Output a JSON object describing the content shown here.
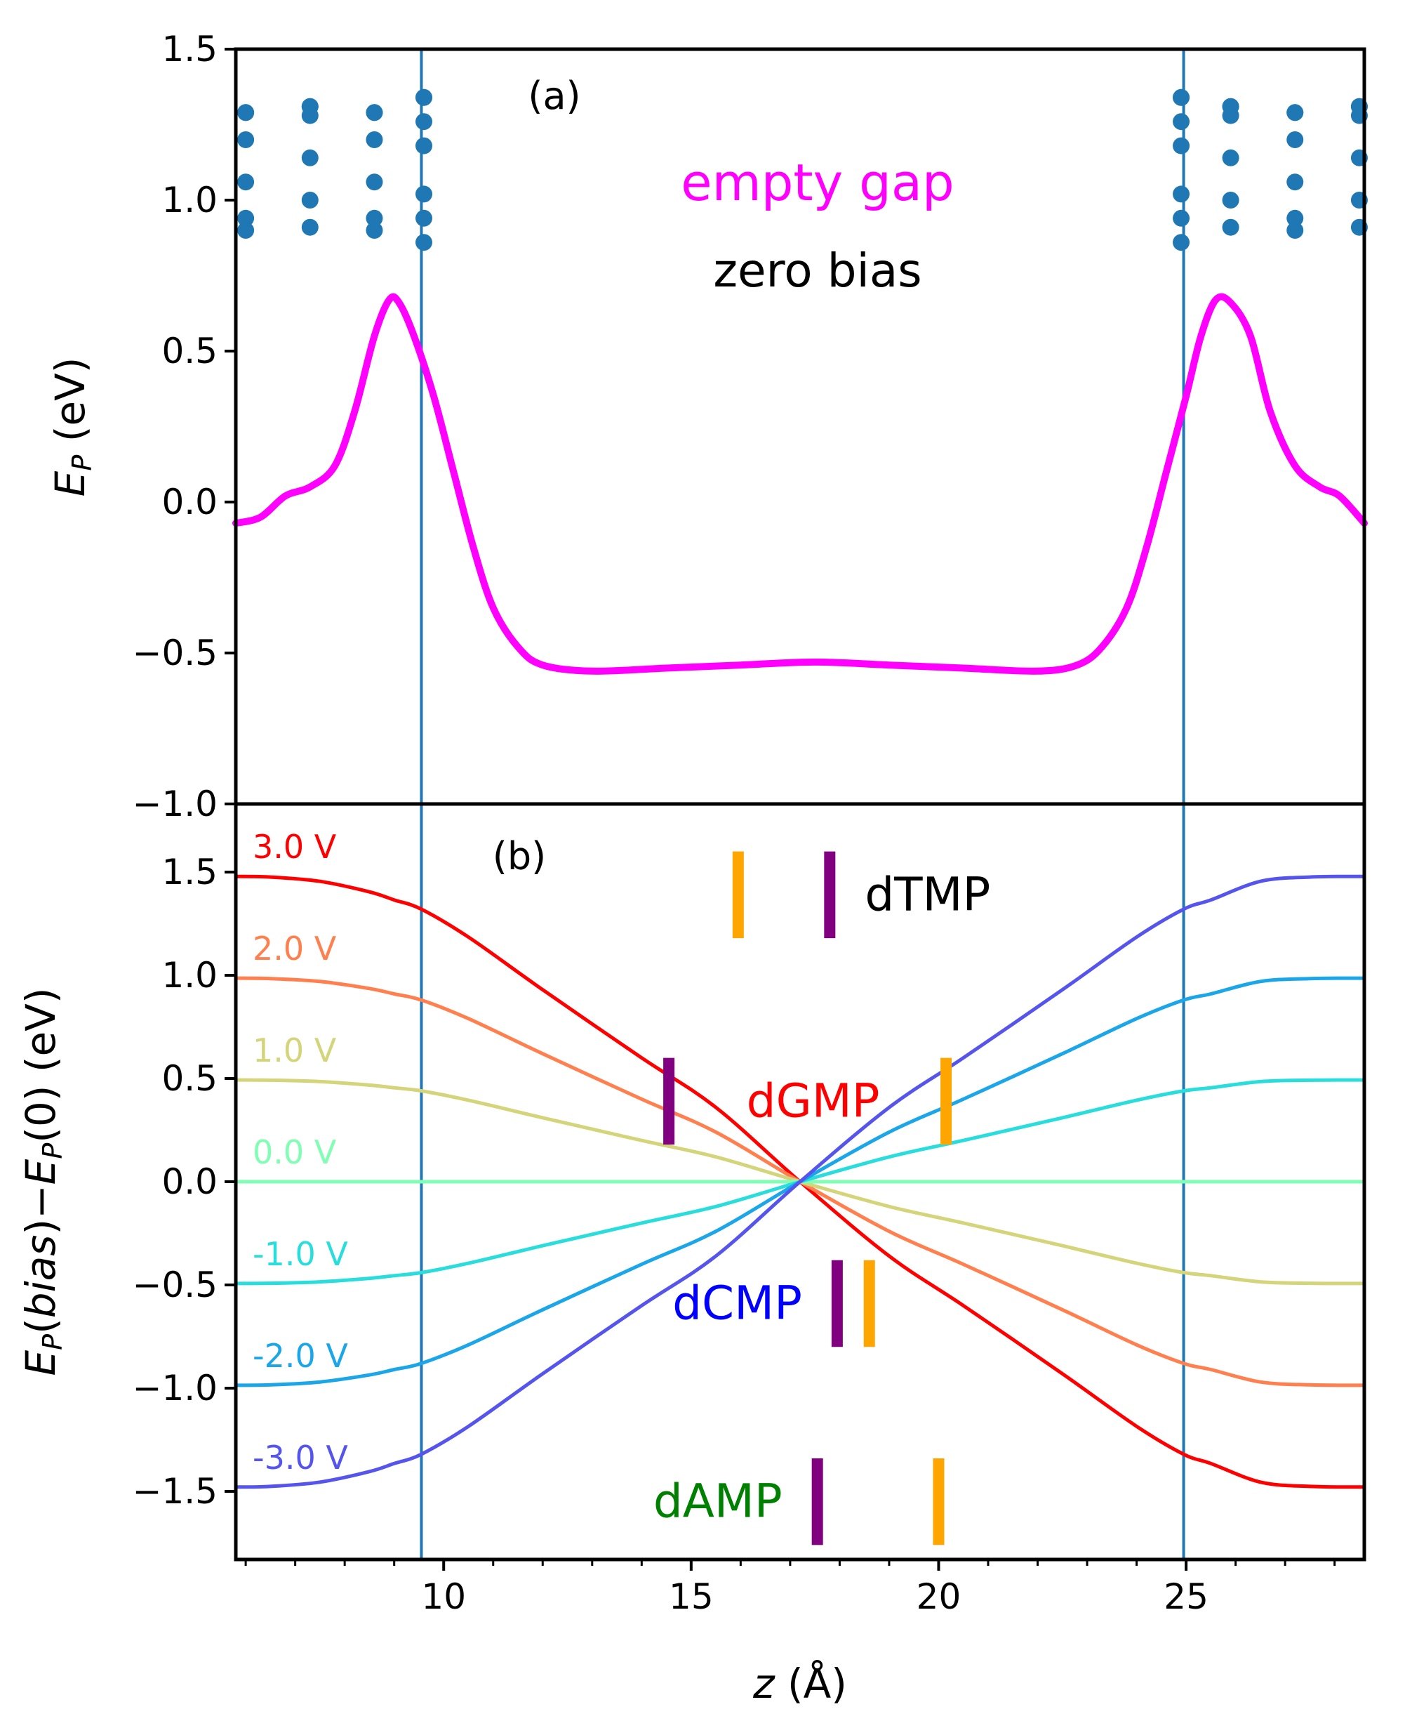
{
  "chart_data": [
    {
      "type": "line",
      "panel": "(a)",
      "xlabel": "z (Å)",
      "ylabel": "E_P (eV)",
      "ylabel_main": "E",
      "ylabel_sub": "P",
      "ylabel_rest": " (eV)",
      "xlim": [
        5.8,
        28.6
      ],
      "ylim": [
        -1.0,
        1.5
      ],
      "yticks": [
        -1.0,
        -0.5,
        0.0,
        0.5,
        1.0,
        1.5
      ],
      "ytick_labels": [
        "−1.0",
        "−0.5",
        "0.0",
        "0.5",
        "1.0",
        "1.5"
      ],
      "vlines": [
        9.55,
        24.95
      ],
      "vline_color": "#1f77b4",
      "annotations": [
        {
          "text": "empty gap",
          "color": "#ff00ff"
        },
        {
          "text": "zero bias",
          "color": "#000000"
        }
      ],
      "series": [
        {
          "name": "empty gap, zero bias",
          "color": "#ff00ff",
          "x": [
            5.8,
            6.3,
            6.8,
            7.3,
            7.8,
            8.2,
            8.6,
            8.9,
            9.1,
            9.4,
            9.8,
            10.2,
            10.6,
            11.0,
            11.5,
            12.0,
            13.0,
            14.5,
            16.0,
            17.5,
            19.0,
            20.5,
            22.0,
            22.8,
            23.3,
            23.8,
            24.2,
            24.6,
            25.0,
            25.3,
            25.6,
            25.9,
            26.3,
            26.7,
            27.2,
            27.7,
            28.1,
            28.6
          ],
          "y": [
            -0.07,
            -0.05,
            0.02,
            0.05,
            0.12,
            0.3,
            0.55,
            0.67,
            0.66,
            0.55,
            0.35,
            0.1,
            -0.15,
            -0.35,
            -0.48,
            -0.54,
            -0.56,
            -0.55,
            -0.54,
            -0.53,
            -0.54,
            -0.55,
            -0.56,
            -0.54,
            -0.48,
            -0.35,
            -0.15,
            0.1,
            0.35,
            0.55,
            0.67,
            0.66,
            0.55,
            0.3,
            0.12,
            0.05,
            0.02,
            -0.07
          ]
        }
      ],
      "scatter": {
        "name": "atom positions",
        "color": "#1f77b4",
        "x": [
          6.0,
          6.0,
          6.0,
          6.0,
          6.0,
          6.0,
          7.3,
          7.3,
          7.3,
          7.3,
          7.3,
          7.3,
          8.6,
          8.6,
          8.6,
          8.6,
          8.6,
          8.6,
          9.6,
          9.6,
          9.6,
          9.6,
          9.6,
          9.6,
          9.6,
          24.9,
          24.9,
          24.9,
          24.9,
          24.9,
          24.9,
          24.9,
          25.9,
          25.9,
          25.9,
          25.9,
          25.9,
          25.9,
          27.2,
          27.2,
          27.2,
          27.2,
          27.2,
          27.2,
          28.5,
          28.5,
          28.5,
          28.5,
          28.5,
          28.5
        ],
        "y": [
          1.29,
          1.2,
          1.06,
          0.94,
          0.9,
          1.29,
          1.31,
          1.28,
          1.14,
          1.0,
          0.91,
          1.31,
          1.29,
          1.2,
          1.06,
          0.94,
          0.9,
          1.29,
          1.34,
          1.26,
          1.18,
          1.02,
          0.94,
          0.86,
          1.34,
          1.34,
          1.26,
          1.18,
          1.02,
          0.94,
          0.86,
          1.34,
          1.31,
          1.28,
          1.14,
          1.0,
          0.91,
          1.31,
          1.29,
          1.2,
          1.06,
          0.94,
          0.9,
          1.29,
          1.31,
          1.28,
          1.14,
          1.0,
          0.91,
          1.31
        ]
      }
    },
    {
      "type": "line",
      "panel": "(b)",
      "xlabel": "z (Å)",
      "ylabel": "E_P(bias)−E_P(0) (eV)",
      "xlim": [
        5.8,
        28.6
      ],
      "ylim": [
        -1.83,
        1.83
      ],
      "xticks": [
        10,
        15,
        20,
        25
      ],
      "xtick_labels": [
        "10",
        "15",
        "20",
        "25"
      ],
      "xminor_step": 1,
      "yticks": [
        -1.5,
        -1.0,
        -0.5,
        0.0,
        0.5,
        1.0,
        1.5
      ],
      "ytick_labels": [
        "−1.5",
        "−1.0",
        "−0.5",
        "0.0",
        "0.5",
        "1.0",
        "1.5"
      ],
      "vlines": [
        9.55,
        24.95
      ],
      "vline_color": "#1f77b4",
      "series": [
        {
          "name": "3.0 V",
          "bias": 3.0,
          "color": "#ff0000"
        },
        {
          "name": "2.0 V",
          "bias": 2.0,
          "color": "#ff7f4e"
        },
        {
          "name": "1.0 V",
          "bias": 1.0,
          "color": "#d4d47a"
        },
        {
          "name": "0.0 V",
          "bias": 0.0,
          "color": "#80ffb4"
        },
        {
          "name": "-1.0 V",
          "bias": -1.0,
          "color": "#2adddd"
        },
        {
          "name": "-2.0 V",
          "bias": -2.0,
          "color": "#1aa6e8"
        },
        {
          "name": "-3.0 V",
          "bias": -3.0,
          "color": "#5555ee"
        }
      ],
      "profile": {
        "x": [
          5.8,
          6.5,
          7.5,
          8.5,
          9.0,
          9.55,
          10.5,
          12.0,
          14.0,
          15.5,
          17.2,
          19.0,
          20.5,
          22.5,
          24.0,
          24.95,
          25.5,
          26.5,
          27.5,
          28.6
        ],
        "fraction": [
          0.493,
          0.492,
          0.485,
          0.468,
          0.455,
          0.44,
          0.395,
          0.31,
          0.2,
          0.12,
          0.0,
          -0.12,
          -0.2,
          -0.31,
          -0.395,
          -0.44,
          -0.455,
          -0.485,
          -0.492,
          -0.493
        ]
      },
      "markers": [
        {
          "label": "dTMP",
          "label_color": "#000000",
          "bars": [
            {
              "x": 15.95,
              "y0": 1.18,
              "y1": 1.6,
              "color": "#ffa500"
            },
            {
              "x": 17.8,
              "y0": 1.18,
              "y1": 1.6,
              "color": "#800080"
            }
          ]
        },
        {
          "label": "dGMP",
          "label_color": "#ff0000",
          "bars": [
            {
              "x": 14.55,
              "y0": 0.18,
              "y1": 0.6,
              "color": "#800080"
            },
            {
              "x": 20.15,
              "y0": 0.18,
              "y1": 0.6,
              "color": "#ffa500"
            }
          ]
        },
        {
          "label": "dCMP",
          "label_color": "#0000ff",
          "bars": [
            {
              "x": 17.95,
              "y0": -0.8,
              "y1": -0.38,
              "color": "#800080"
            },
            {
              "x": 18.6,
              "y0": -0.8,
              "y1": -0.38,
              "color": "#ffa500"
            }
          ]
        },
        {
          "label": "dAMP",
          "label_color": "#008000",
          "bars": [
            {
              "x": 17.55,
              "y0": -1.76,
              "y1": -1.34,
              "color": "#800080"
            },
            {
              "x": 20.0,
              "y0": -1.76,
              "y1": -1.34,
              "color": "#ffa500"
            }
          ]
        }
      ]
    }
  ]
}
